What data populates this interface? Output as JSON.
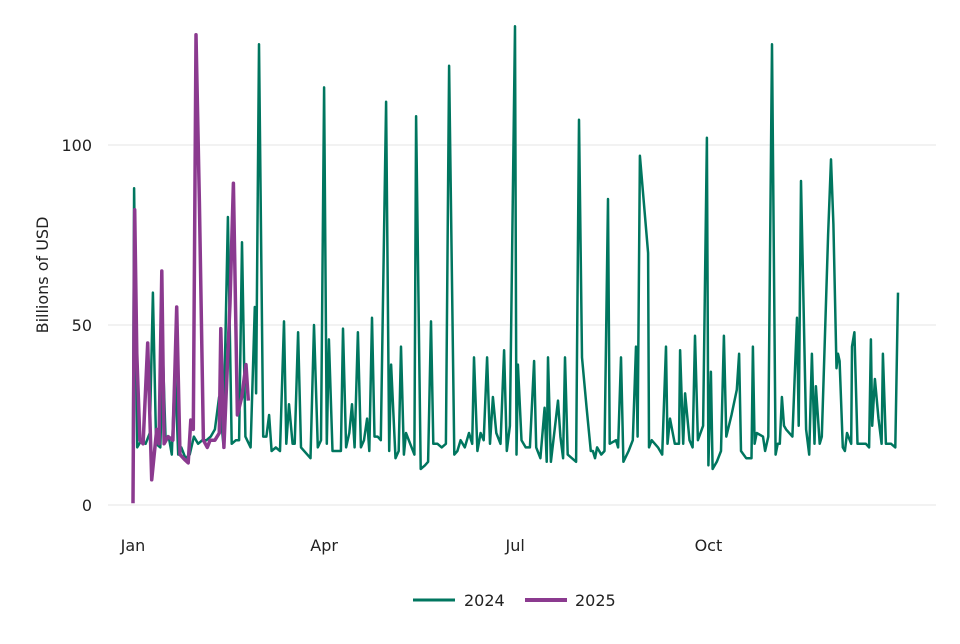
{
  "chart_data": {
    "type": "line",
    "title": "",
    "xlabel": "",
    "ylabel": "Billions of USD",
    "x_unit": "day of year",
    "xlim": [
      -10,
      380
    ],
    "ylim": [
      0,
      135
    ],
    "grid": true,
    "legend_position": "bottom",
    "x_ticks": [
      {
        "label": "Jan",
        "value": 0
      },
      {
        "label": "Apr",
        "value": 91
      },
      {
        "label": "Jul",
        "value": 182
      },
      {
        "label": "Oct",
        "value": 274
      }
    ],
    "y_ticks": [
      {
        "label": "0",
        "value": 0
      },
      {
        "label": "50",
        "value": 50
      },
      {
        "label": "100",
        "value": 100
      }
    ],
    "colors": {
      "2024": "#00765f",
      "2025": "#8b3a8f",
      "grid": "#e6e6e6"
    },
    "series": [
      {
        "name": "2024",
        "points": [
          [
            0,
            17
          ],
          [
            0.5,
            88
          ],
          [
            2,
            16
          ],
          [
            4,
            18
          ],
          [
            6,
            17
          ],
          [
            8,
            20
          ],
          [
            9.5,
            59
          ],
          [
            11,
            17
          ],
          [
            13,
            16
          ],
          [
            14.3,
            41
          ],
          [
            15.5,
            18
          ],
          [
            17,
            19
          ],
          [
            18.5,
            14
          ],
          [
            20,
            38
          ],
          [
            21.5,
            14
          ],
          [
            23,
            16
          ],
          [
            25,
            13
          ],
          [
            27,
            14
          ],
          [
            29,
            19
          ],
          [
            31,
            17
          ],
          [
            33,
            18
          ],
          [
            35,
            18
          ],
          [
            37,
            19
          ],
          [
            39,
            21
          ],
          [
            41,
            30
          ],
          [
            43,
            17
          ],
          [
            45.2,
            80
          ],
          [
            47,
            17
          ],
          [
            49,
            18
          ],
          [
            50.5,
            18
          ],
          [
            51.9,
            73
          ],
          [
            53.5,
            19
          ],
          [
            56,
            16
          ],
          [
            58,
            55
          ],
          [
            58.6,
            31
          ],
          [
            60,
            128
          ],
          [
            62,
            19
          ],
          [
            63.5,
            19
          ],
          [
            64.8,
            25
          ],
          [
            66,
            15
          ],
          [
            68,
            16
          ],
          [
            70,
            15
          ],
          [
            71.9,
            51
          ],
          [
            73,
            17
          ],
          [
            74.3,
            28
          ],
          [
            76,
            17
          ],
          [
            77,
            17
          ],
          [
            78.6,
            48
          ],
          [
            80,
            16
          ],
          [
            83,
            14
          ],
          [
            84.5,
            13
          ],
          [
            86.2,
            50
          ],
          [
            88,
            16
          ],
          [
            89.5,
            18
          ],
          [
            91,
            116
          ],
          [
            92.3,
            17
          ],
          [
            93.3,
            46
          ],
          [
            95,
            15
          ],
          [
            97,
            15
          ],
          [
            99,
            15
          ],
          [
            100,
            49
          ],
          [
            101.5,
            16
          ],
          [
            103,
            20
          ],
          [
            104.3,
            28
          ],
          [
            105.5,
            16
          ],
          [
            107.1,
            48
          ],
          [
            108.5,
            16
          ],
          [
            110,
            18
          ],
          [
            111.5,
            24
          ],
          [
            112.5,
            15
          ],
          [
            113.8,
            52
          ],
          [
            115,
            19
          ],
          [
            116.5,
            19
          ],
          [
            118,
            18
          ],
          [
            120.5,
            112
          ],
          [
            122,
            15
          ],
          [
            122.9,
            39
          ],
          [
            125,
            13
          ],
          [
            126.5,
            15
          ],
          [
            127.6,
            44
          ],
          [
            129,
            14
          ],
          [
            130,
            20
          ],
          [
            132,
            17
          ],
          [
            134,
            14
          ],
          [
            134.8,
            108
          ],
          [
            137,
            10
          ],
          [
            139,
            11
          ],
          [
            140.5,
            12
          ],
          [
            141.9,
            51
          ],
          [
            143,
            17
          ],
          [
            145,
            17
          ],
          [
            147,
            16
          ],
          [
            149,
            17
          ],
          [
            150.5,
            122
          ],
          [
            153,
            14
          ],
          [
            154.5,
            15
          ],
          [
            156,
            18
          ],
          [
            158,
            16
          ],
          [
            160,
            20
          ],
          [
            161.5,
            17
          ],
          [
            162.4,
            41
          ],
          [
            164,
            15
          ],
          [
            165.5,
            20
          ],
          [
            167,
            18
          ],
          [
            168.6,
            41
          ],
          [
            170,
            17
          ],
          [
            171.4,
            30
          ],
          [
            173,
            20
          ],
          [
            175,
            17
          ],
          [
            176.7,
            43
          ],
          [
            178,
            15
          ],
          [
            179.5,
            22
          ],
          [
            181.9,
            133
          ],
          [
            182.6,
            14
          ],
          [
            183.3,
            39
          ],
          [
            185,
            18
          ],
          [
            187,
            16
          ],
          [
            189,
            16
          ],
          [
            191,
            40
          ],
          [
            192,
            16
          ],
          [
            194,
            13
          ],
          [
            196,
            27
          ],
          [
            197,
            12
          ],
          [
            197.6,
            41
          ],
          [
            199,
            12
          ],
          [
            201,
            22
          ],
          [
            202.4,
            29
          ],
          [
            203.5,
            19
          ],
          [
            204.8,
            13
          ],
          [
            205.7,
            41
          ],
          [
            207,
            14
          ],
          [
            209,
            13
          ],
          [
            211,
            12
          ],
          [
            212.4,
            107
          ],
          [
            213.8,
            41
          ],
          [
            216,
            27
          ],
          [
            218,
            15
          ],
          [
            219,
            15
          ],
          [
            220,
            13
          ],
          [
            221,
            16
          ],
          [
            223,
            14
          ],
          [
            224.5,
            15
          ],
          [
            226.2,
            85
          ],
          [
            227,
            17
          ],
          [
            230,
            18
          ],
          [
            231,
            16
          ],
          [
            232.4,
            41
          ],
          [
            233.5,
            12
          ],
          [
            236,
            15
          ],
          [
            238,
            18
          ],
          [
            239.5,
            44
          ],
          [
            240.3,
            19
          ],
          [
            241.4,
            97
          ],
          [
            245.3,
            70
          ],
          [
            245.7,
            16
          ],
          [
            247,
            18
          ],
          [
            250,
            16
          ],
          [
            252,
            14
          ],
          [
            253.8,
            44
          ],
          [
            254.5,
            17
          ],
          [
            255.7,
            24
          ],
          [
            258,
            17
          ],
          [
            260,
            17
          ],
          [
            260.5,
            43
          ],
          [
            262,
            17
          ],
          [
            262.9,
            31
          ],
          [
            265,
            18
          ],
          [
            266.5,
            16
          ],
          [
            267.6,
            47
          ],
          [
            269,
            18
          ],
          [
            271.5,
            22
          ],
          [
            273.3,
            102
          ],
          [
            274,
            11
          ],
          [
            275.2,
            37
          ],
          [
            276,
            10
          ],
          [
            278,
            12
          ],
          [
            280,
            15
          ],
          [
            281.4,
            47
          ],
          [
            282.5,
            19
          ],
          [
            285,
            25
          ],
          [
            287.5,
            32
          ],
          [
            288.6,
            42
          ],
          [
            289.5,
            15
          ],
          [
            292,
            13
          ],
          [
            294.5,
            13
          ],
          [
            295.2,
            44
          ],
          [
            296,
            17
          ],
          [
            297,
            20
          ],
          [
            300,
            19
          ],
          [
            301,
            15
          ],
          [
            302.5,
            19
          ],
          [
            304.3,
            128
          ],
          [
            306,
            14
          ],
          [
            307,
            17
          ],
          [
            308,
            17
          ],
          [
            309,
            30
          ],
          [
            310,
            22
          ],
          [
            311,
            21
          ],
          [
            314,
            19
          ],
          [
            316.2,
            52
          ],
          [
            317,
            22
          ],
          [
            318.1,
            90
          ],
          [
            320.5,
            21
          ],
          [
            322,
            14
          ],
          [
            323.3,
            42
          ],
          [
            324.5,
            17
          ],
          [
            325.2,
            33
          ],
          [
            327,
            17
          ],
          [
            328,
            19
          ],
          [
            331,
            75
          ],
          [
            332.4,
            96
          ],
          [
            333.5,
            78
          ],
          [
            335,
            38
          ],
          [
            335.7,
            42
          ],
          [
            336.5,
            40
          ],
          [
            338,
            16
          ],
          [
            339,
            15
          ],
          [
            340,
            20
          ],
          [
            342,
            17
          ],
          [
            342.4,
            44
          ],
          [
            343.5,
            48
          ],
          [
            345,
            17
          ],
          [
            347,
            17
          ],
          [
            349,
            17
          ],
          [
            350.5,
            16
          ],
          [
            351.4,
            46
          ],
          [
            352,
            22
          ],
          [
            353.3,
            35
          ],
          [
            355,
            24
          ],
          [
            356.5,
            17
          ],
          [
            357.1,
            42
          ],
          [
            358.5,
            17
          ],
          [
            361,
            17
          ],
          [
            363,
            16
          ],
          [
            364.3,
            59
          ]
        ]
      },
      {
        "name": "2025",
        "points": [
          [
            0,
            0.5
          ],
          [
            0.8,
            82
          ],
          [
            1.8,
            42
          ],
          [
            3.3,
            18
          ],
          [
            4.8,
            17
          ],
          [
            7,
            45
          ],
          [
            8.9,
            7
          ],
          [
            11.3,
            21
          ],
          [
            12.4,
            17
          ],
          [
            13.7,
            65
          ],
          [
            14.8,
            17
          ],
          [
            16.7,
            19
          ],
          [
            19,
            18
          ],
          [
            20.8,
            55
          ],
          [
            22.4,
            14
          ],
          [
            24.8,
            12.5
          ],
          [
            26.3,
            11.7
          ],
          [
            27.5,
            23.6
          ],
          [
            28.7,
            21
          ],
          [
            30,
            130.6
          ],
          [
            31.6,
            84
          ],
          [
            33.5,
            18
          ],
          [
            35.4,
            16
          ],
          [
            36.7,
            18
          ],
          [
            39,
            18
          ],
          [
            41.1,
            20
          ],
          [
            41.8,
            49
          ],
          [
            43.3,
            16
          ],
          [
            46.2,
            56
          ],
          [
            47.8,
            89.4
          ],
          [
            49.7,
            25
          ],
          [
            51.8,
            30
          ],
          [
            53.8,
            39
          ],
          [
            54.9,
            29
          ]
        ]
      }
    ]
  }
}
